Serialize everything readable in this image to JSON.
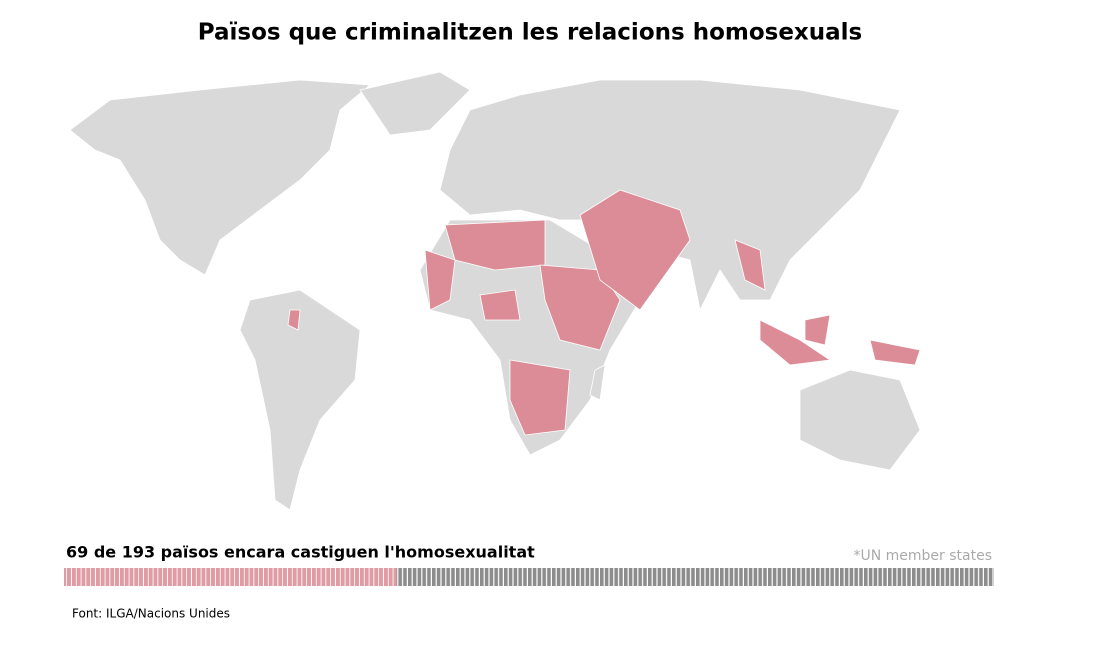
{
  "title": "Països que criminalitzen les relacions homosexuals",
  "summary": "69 de 193 països encara castiguen l'homosexualitat",
  "footnote": "*UN member states",
  "source": "Font: ILGA/Nacions Unides",
  "stats": {
    "criminalizing": 69,
    "total": 193
  }
}
